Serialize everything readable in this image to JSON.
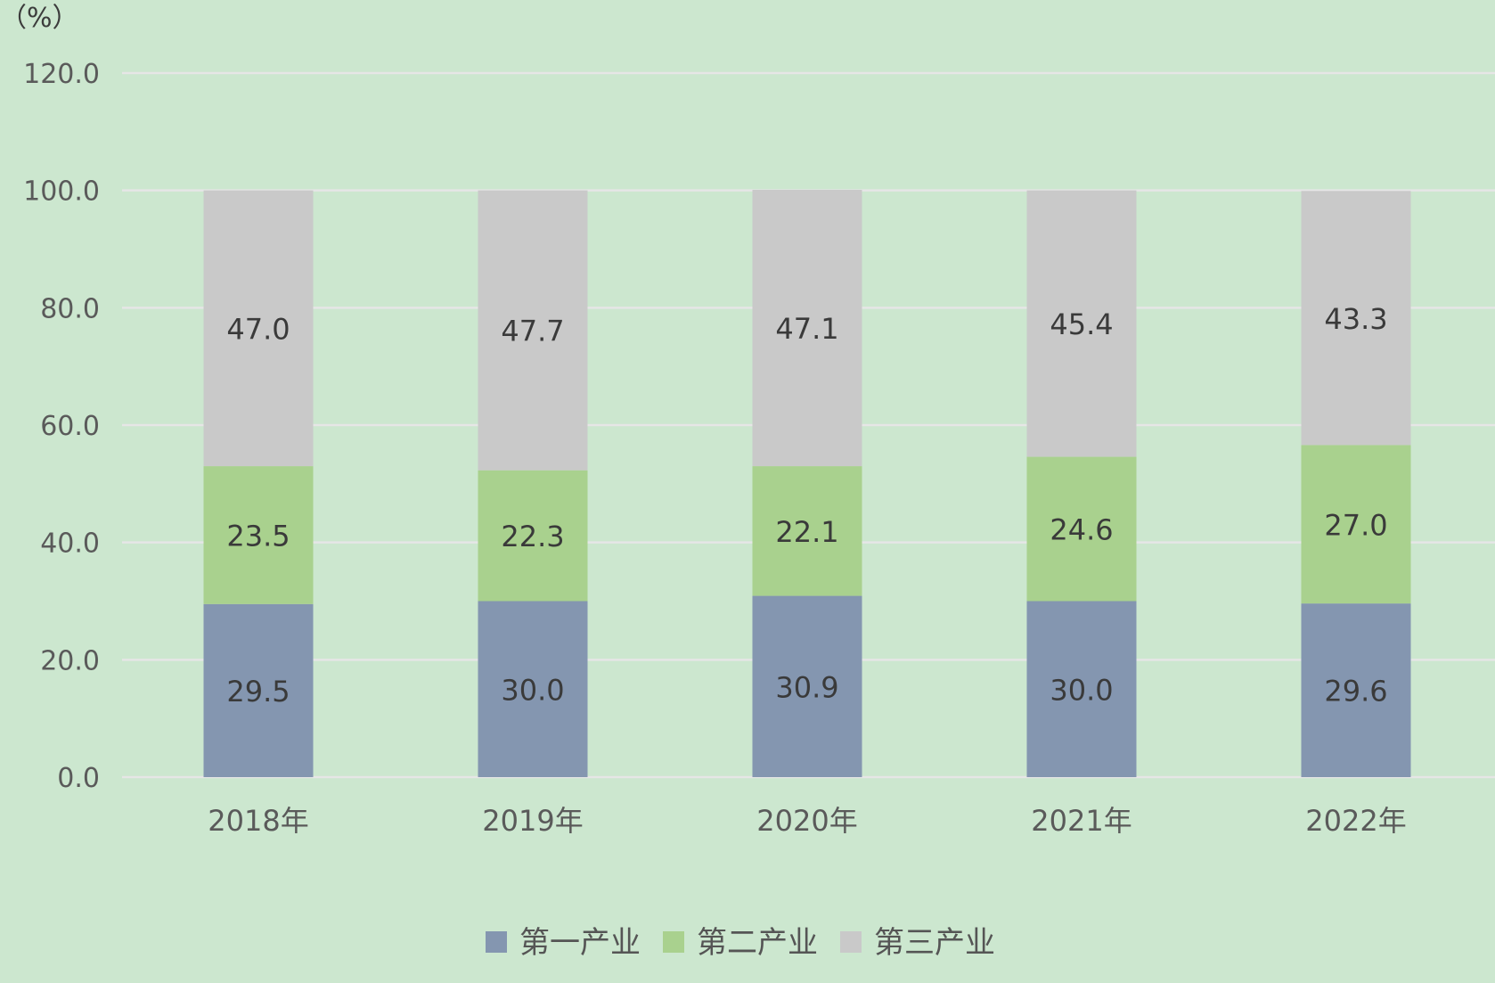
{
  "colors": {
    "background": "#cce7cf",
    "grid": "#e6e6e6",
    "series": [
      "#8496b0",
      "#a9d18e",
      "#c9c9c9"
    ]
  },
  "chart_data": {
    "type": "bar",
    "stacked": true,
    "unit_label": "（%）",
    "categories": [
      "2018年",
      "2019年",
      "2020年",
      "2021年",
      "2022年"
    ],
    "series": [
      {
        "name": "第一产业",
        "values": [
          29.5,
          30.0,
          30.9,
          30.0,
          29.6
        ]
      },
      {
        "name": "第二产业",
        "values": [
          23.5,
          22.3,
          22.1,
          24.6,
          27.0
        ]
      },
      {
        "name": "第三产业",
        "values": [
          47.0,
          47.7,
          47.1,
          45.4,
          43.3
        ]
      }
    ],
    "ylim": [
      0,
      120
    ],
    "yticks": [
      "0.0",
      "20.0",
      "40.0",
      "60.0",
      "80.0",
      "100.0",
      "120.0"
    ],
    "grid": true,
    "legend_position": "bottom",
    "xlabel": "",
    "ylabel": ""
  }
}
